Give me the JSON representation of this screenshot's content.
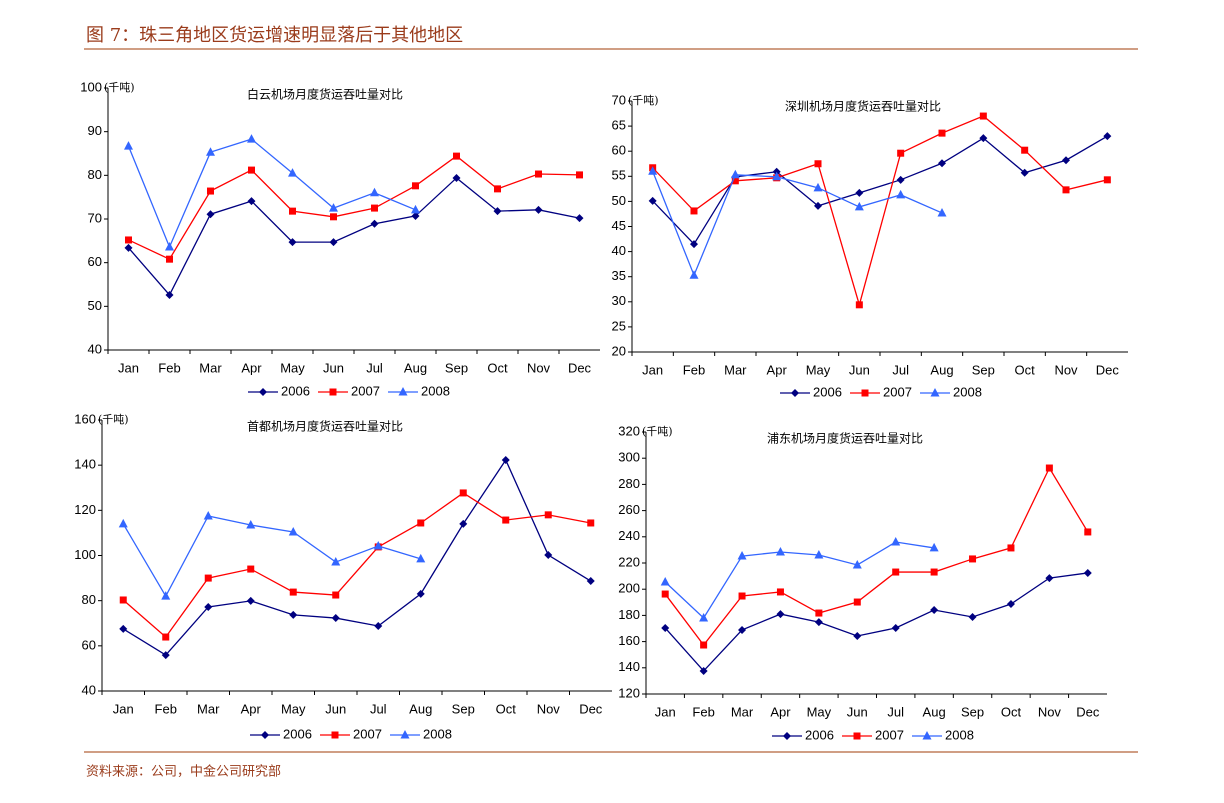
{
  "title": "图 7：珠三角地区货运增速明显落后于其他地区",
  "source": "资料来源：公司，中金公司研究部",
  "chart_data": [
    {
      "type": "line",
      "title": "白云机场月度货运吞吐量对比",
      "unit": "(千吨)",
      "categories": [
        "Jan",
        "Feb",
        "Mar",
        "Apr",
        "May",
        "Jun",
        "Jul",
        "Aug",
        "Sep",
        "Oct",
        "Nov",
        "Dec"
      ],
      "ylim": [
        40,
        100
      ],
      "yticks": [
        40,
        50,
        60,
        70,
        80,
        90,
        100
      ],
      "grid": false,
      "series": [
        {
          "name": "2006",
          "color": "#000080",
          "marker": "diamond",
          "values": [
            63.4,
            52.6,
            71.1,
            74.1,
            64.7,
            64.7,
            68.9,
            70.7,
            79.4,
            71.8,
            72.1,
            70.2
          ]
        },
        {
          "name": "2007",
          "color": "#ff0000",
          "marker": "square",
          "values": [
            65.2,
            60.8,
            76.4,
            81.2,
            71.8,
            70.5,
            72.5,
            77.6,
            84.4,
            76.9,
            80.3,
            80.1
          ]
        },
        {
          "name": "2008",
          "color": "#3366ff",
          "marker": "triangle",
          "values": [
            86.7,
            63.6,
            85.3,
            88.3,
            80.5,
            72.5,
            76.0,
            72.1,
            null,
            null,
            null,
            null
          ]
        }
      ]
    },
    {
      "type": "line",
      "title": "深圳机场月度货运吞吐量对比",
      "unit": "(千吨)",
      "categories": [
        "Jan",
        "Feb",
        "Mar",
        "Apr",
        "May",
        "Jun",
        "Jul",
        "Aug",
        "Sep",
        "Oct",
        "Nov",
        "Dec"
      ],
      "ylim": [
        20,
        70
      ],
      "yticks": [
        20,
        25,
        30,
        35,
        40,
        45,
        50,
        55,
        60,
        65,
        70
      ],
      "grid": false,
      "series": [
        {
          "name": "2006",
          "color": "#000080",
          "marker": "diamond",
          "values": [
            50.1,
            41.5,
            54.9,
            55.9,
            49.1,
            51.7,
            54.3,
            57.6,
            62.6,
            55.7,
            58.2,
            63.0
          ]
        },
        {
          "name": "2007",
          "color": "#ff0000",
          "marker": "square",
          "values": [
            56.7,
            48.1,
            54.1,
            54.7,
            57.5,
            29.4,
            59.6,
            63.6,
            67.0,
            60.2,
            52.3,
            54.3
          ]
        },
        {
          "name": "2008",
          "color": "#3366ff",
          "marker": "triangle",
          "values": [
            56.0,
            35.3,
            55.3,
            54.9,
            52.7,
            48.9,
            51.3,
            47.7,
            null,
            null,
            null,
            null
          ]
        }
      ]
    },
    {
      "type": "line",
      "title": "首都机场月度货运吞吐量对比",
      "unit": "(千吨)",
      "categories": [
        "Jan",
        "Feb",
        "Mar",
        "Apr",
        "May",
        "Jun",
        "Jul",
        "Aug",
        "Sep",
        "Oct",
        "Nov",
        "Dec"
      ],
      "ylim": [
        40,
        160
      ],
      "yticks": [
        40,
        60,
        80,
        100,
        120,
        140,
        160
      ],
      "grid": false,
      "series": [
        {
          "name": "2006",
          "color": "#000080",
          "marker": "diamond",
          "values": [
            67.5,
            55.9,
            77.2,
            79.9,
            73.7,
            72.3,
            68.8,
            83.0,
            114.0,
            142.3,
            100.2,
            88.7
          ]
        },
        {
          "name": "2007",
          "color": "#ff0000",
          "marker": "square",
          "values": [
            80.3,
            63.9,
            90.0,
            94.0,
            83.8,
            82.5,
            103.8,
            114.4,
            127.7,
            115.7,
            118.0,
            114.4
          ]
        },
        {
          "name": "2008",
          "color": "#3366ff",
          "marker": "triangle",
          "values": [
            114.0,
            82.0,
            117.5,
            113.5,
            110.4,
            97.1,
            104.2,
            98.5,
            null,
            null,
            null,
            null
          ]
        }
      ]
    },
    {
      "type": "line",
      "title": "浦东机场月度货运吞吐量对比",
      "unit": "(千吨)",
      "categories": [
        "Jan",
        "Feb",
        "Mar",
        "Apr",
        "May",
        "Jun",
        "Jul",
        "Aug",
        "Sep",
        "Oct",
        "Nov",
        "Dec"
      ],
      "ylim": [
        120,
        320
      ],
      "yticks": [
        120,
        140,
        160,
        180,
        200,
        220,
        240,
        260,
        280,
        300,
        320
      ],
      "grid": false,
      "series": [
        {
          "name": "2006",
          "color": "#000080",
          "marker": "diamond",
          "values": [
            170.4,
            137.6,
            168.9,
            181.0,
            174.9,
            164.3,
            170.4,
            184.1,
            178.8,
            188.7,
            208.5,
            212.4
          ]
        },
        {
          "name": "2007",
          "color": "#ff0000",
          "marker": "square",
          "values": [
            196.3,
            157.4,
            194.8,
            197.9,
            181.8,
            190.2,
            213.1,
            213.1,
            223.1,
            231.5,
            292.5,
            243.7
          ]
        },
        {
          "name": "2008",
          "color": "#3366ff",
          "marker": "triangle",
          "values": [
            205.5,
            178.0,
            225.3,
            228.4,
            226.1,
            218.5,
            236.0,
            231.5,
            null,
            null,
            null,
            null
          ]
        }
      ]
    }
  ]
}
